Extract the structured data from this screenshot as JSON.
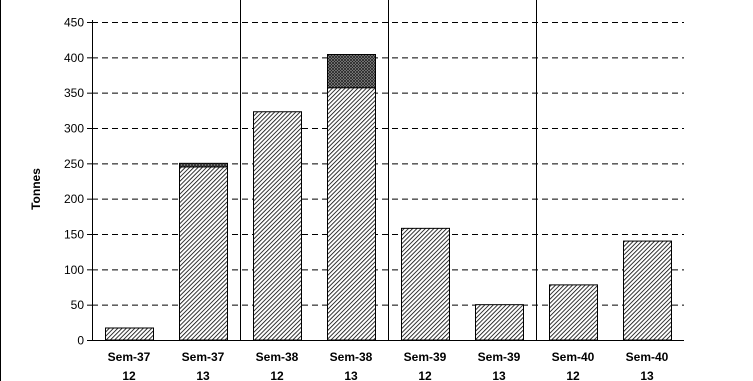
{
  "chart_data": {
    "type": "bar",
    "stacked": true,
    "ylabel": "Tonnes",
    "ylim": [
      0,
      450
    ],
    "yticks": [
      0,
      50,
      100,
      150,
      200,
      250,
      300,
      350,
      400,
      450
    ],
    "grid": "horizontal dashed",
    "legend": "none",
    "categories": [
      {
        "week": "Sem-37",
        "sub": "12"
      },
      {
        "week": "Sem-37",
        "sub": "13"
      },
      {
        "week": "Sem-38",
        "sub": "12"
      },
      {
        "week": "Sem-38",
        "sub": "13"
      },
      {
        "week": "Sem-39",
        "sub": "12"
      },
      {
        "week": "Sem-39",
        "sub": "13"
      },
      {
        "week": "Sem-40",
        "sub": "12"
      },
      {
        "week": "Sem-40",
        "sub": "13"
      }
    ],
    "group_separators_after": [
      1,
      3,
      5
    ],
    "series": [
      {
        "values": [
          17,
          245,
          323,
          357,
          158,
          50,
          78,
          140
        ],
        "pattern": "diagonal-hatch"
      },
      {
        "values": [
          0,
          5,
          0,
          47,
          0,
          0,
          0,
          0
        ],
        "pattern": "dense-crosshatch"
      }
    ]
  }
}
